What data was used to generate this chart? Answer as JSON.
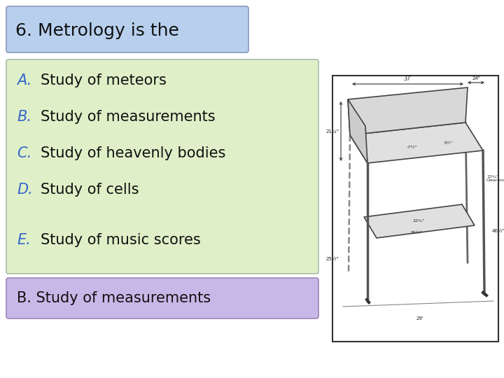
{
  "title": "6. Metrology is the",
  "title_box_color": "#b8d0ee",
  "title_box_edge": "#8899bb",
  "options_box_color": "#dff0c8",
  "options_box_edge": "#aabbaa",
  "answer_box_color": "#c8b8e8",
  "answer_box_edge": "#9988bb",
  "options": [
    {
      "letter": "A.",
      "text": "Study of meteors"
    },
    {
      "letter": "B.",
      "text": "Study of measurements"
    },
    {
      "letter": "C.",
      "text": "Study of heavenly bodies"
    },
    {
      "letter": "D.",
      "text": "Study of cells"
    },
    {
      "letter": "E.",
      "text": "Study of music scores"
    }
  ],
  "letter_colors": [
    "#3366cc",
    "#3366cc",
    "#3366cc",
    "#3366cc",
    "#3366cc"
  ],
  "answer": "B. Study of measurements",
  "bg_color": "#ffffff",
  "font_size_title": 18,
  "font_size_options": 15,
  "font_size_answer": 15
}
